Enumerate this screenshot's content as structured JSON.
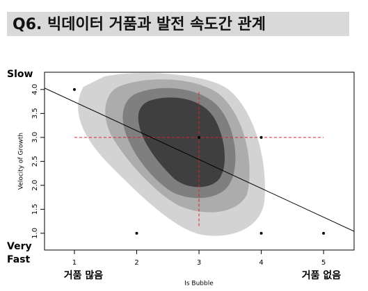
{
  "chart_data": {
    "type": "scatter",
    "title": "Q6. 빅데이터 거품과 발전 속도간 관계",
    "x_label": "Is Bubble",
    "y_label": "Velocity of Growth",
    "annotations": {
      "top_left": "Slow",
      "bottom_left_1": "Very",
      "bottom_left_2": "Fast",
      "x_low": "거품 많음",
      "x_high": "거품 없음"
    },
    "x": [
      1,
      2,
      3,
      4,
      4,
      5
    ],
    "values": [
      4,
      1,
      3,
      3,
      1,
      1
    ],
    "color": "#000000",
    "regression_line": {
      "x": [
        0.52,
        5.49
      ],
      "y": [
        4.03,
        1.04
      ],
      "color": "#000000"
    },
    "mean_lines": {
      "x": [
        3,
        3
      ],
      "y": [
        1.15,
        3.97
      ],
      "hx": [
        1,
        5
      ],
      "hy": [
        3,
        3
      ],
      "color": "#e0202a"
    },
    "xlim": [
      0.52,
      5.49
    ],
    "ylim": [
      0.65,
      4.36
    ],
    "xticks": [
      1,
      2,
      3,
      4,
      5
    ],
    "yticks": [
      {
        "value": 1,
        "label": "1.0"
      },
      1.5,
      {
        "value": 2,
        "label": "2.0"
      },
      2.5,
      {
        "value": 3,
        "label": "3.0"
      },
      3.5,
      {
        "value": 4,
        "label": "4.0"
      }
    ]
  }
}
